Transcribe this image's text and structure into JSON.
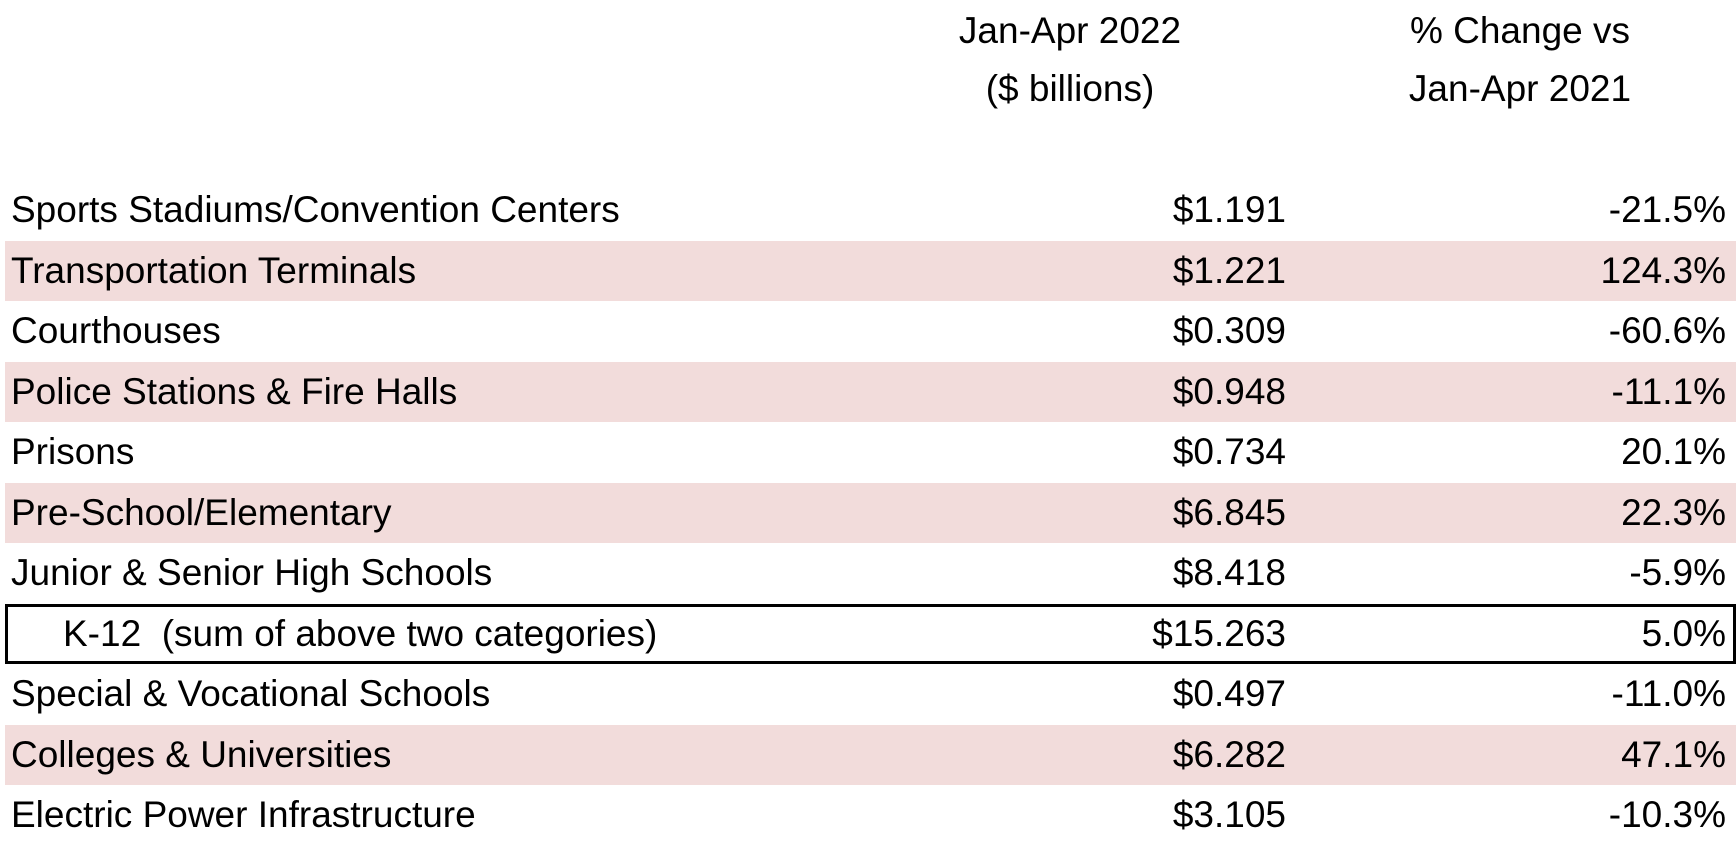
{
  "header": {
    "value_line1": "Jan-Apr 2022",
    "value_line2": "($ billions)",
    "change_line1": "% Change vs",
    "change_line2": "Jan-Apr 2021"
  },
  "rows": [
    {
      "label": "Sports Stadiums/Convention Centers",
      "value": "$1.191",
      "change": "-21.5%"
    },
    {
      "label": "Transportation Terminals",
      "value": "$1.221",
      "change": "124.3%"
    },
    {
      "label": "Courthouses",
      "value": "$0.309",
      "change": "-60.6%"
    },
    {
      "label": "Police Stations & Fire Halls",
      "value": "$0.948",
      "change": "-11.1%"
    },
    {
      "label": "Prisons",
      "value": "$0.734",
      "change": "20.1%"
    },
    {
      "label": "Pre-School/Elementary",
      "value": "$6.845",
      "change": "22.3%"
    },
    {
      "label": "Junior & Senior High Schools",
      "value": "$8.418",
      "change": "-5.9%"
    },
    {
      "label": "K-12  (sum of above two categories)",
      "value": "$15.263",
      "change": "5.0%"
    },
    {
      "label": "Special & Vocational Schools",
      "value": "$0.497",
      "change": "-11.0%"
    },
    {
      "label": "Colleges & Universities",
      "value": "$6.282",
      "change": "47.1%"
    },
    {
      "label": "Electric Power Infrastructure",
      "value": "$3.105",
      "change": "-10.3%"
    }
  ],
  "colors": {
    "shade": "#f2dcdb",
    "border": "#000000",
    "text": "#000000"
  }
}
